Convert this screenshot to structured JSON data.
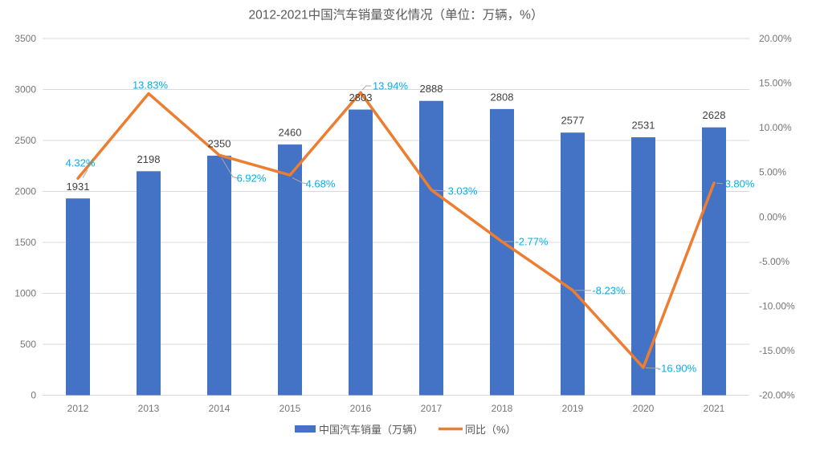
{
  "chart_data": {
    "type": "combo",
    "title": "2012-2021中国汽车销量变化情况（单位：万辆，%）",
    "categories": [
      "2012",
      "2013",
      "2014",
      "2015",
      "2016",
      "2017",
      "2018",
      "2019",
      "2020",
      "2021"
    ],
    "series": [
      {
        "name": "中国汽车销量（万辆）",
        "type": "bar",
        "color": "#4472C4",
        "axis": "left",
        "values": [
          1931,
          2198,
          2350,
          2460,
          2803,
          2888,
          2808,
          2577,
          2531,
          2628
        ],
        "labels": [
          "1931",
          "2198",
          "2350",
          "2460",
          "2803",
          "2888",
          "2808",
          "2577",
          "2531",
          "2628"
        ]
      },
      {
        "name": "同比（%）",
        "type": "line",
        "color": "#ED7D31",
        "label_color": "#00B0F0",
        "axis": "right",
        "values": [
          4.32,
          13.83,
          6.92,
          4.68,
          13.94,
          3.03,
          -2.77,
          -8.23,
          -16.9,
          3.8
        ],
        "labels": [
          "4.32%",
          "13.83%",
          "6.92%",
          "4.68%",
          "13.94%",
          "3.03%",
          "-2.77%",
          "-8.23%",
          "-16.90%",
          "3.80%"
        ]
      }
    ],
    "left_axis": {
      "min": 0,
      "max": 3500,
      "step": 500,
      "ticks": [
        "3500",
        "3000",
        "2500",
        "2000",
        "1500",
        "1000",
        "500",
        "0"
      ]
    },
    "right_axis": {
      "min": -20,
      "max": 20,
      "step": 5,
      "ticks": [
        "20.00%",
        "15.00%",
        "10.00%",
        "5.00%",
        "0.00%",
        "-5.00%",
        "-10.00%",
        "-15.00%",
        "-20.00%"
      ]
    },
    "legend": {
      "position": "bottom",
      "items": [
        "中国汽车销量（万辆）",
        "同比（%）"
      ]
    },
    "grid": "horizontal",
    "colors": {
      "bar": "#4472C4",
      "line": "#ED7D31",
      "point_label": "#00B0F0",
      "bar_label": "#404040",
      "axis_text": "#757575",
      "title_text": "#595959",
      "gridline": "#D9D9D9"
    }
  }
}
